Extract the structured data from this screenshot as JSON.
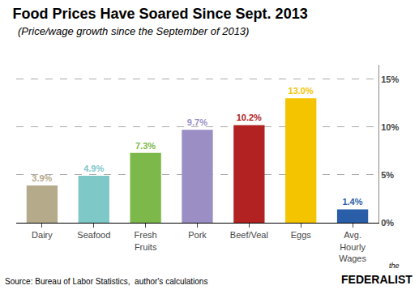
{
  "chart_data": {
    "type": "bar",
    "title": "Food Prices Have Soared Since Sept. 2013",
    "subtitle": "(Price/wage growth since the September of 2013)",
    "categories": [
      "Dairy",
      "Seafood",
      "Fresh\nFruits",
      "Pork",
      "Beef/Veal",
      "Eggs",
      "Avg.\nHourly\nWages"
    ],
    "values": [
      3.9,
      4.9,
      7.3,
      9.7,
      10.2,
      13.0,
      1.4
    ],
    "value_labels": [
      "3.9%",
      "4.9%",
      "7.3%",
      "9.7%",
      "10.2%",
      "13.0%",
      "1.4%"
    ],
    "colors": [
      "#b5aa8a",
      "#7ec8c8",
      "#7db84a",
      "#9b8ec4",
      "#b22222",
      "#f5c400",
      "#2a5ea8"
    ],
    "data_labels": true,
    "ylim": [
      0,
      16.5
    ],
    "yticks": [
      {
        "value": 0,
        "label": "0%"
      },
      {
        "value": 5,
        "label": "5%"
      },
      {
        "value": 10,
        "label": "10%"
      },
      {
        "value": 15,
        "label": "15%"
      }
    ],
    "grid": true,
    "annotations": [
      "Source: Bureau of Labor Statistics,  author's calculations",
      "the",
      "FEDERALIST"
    ]
  }
}
